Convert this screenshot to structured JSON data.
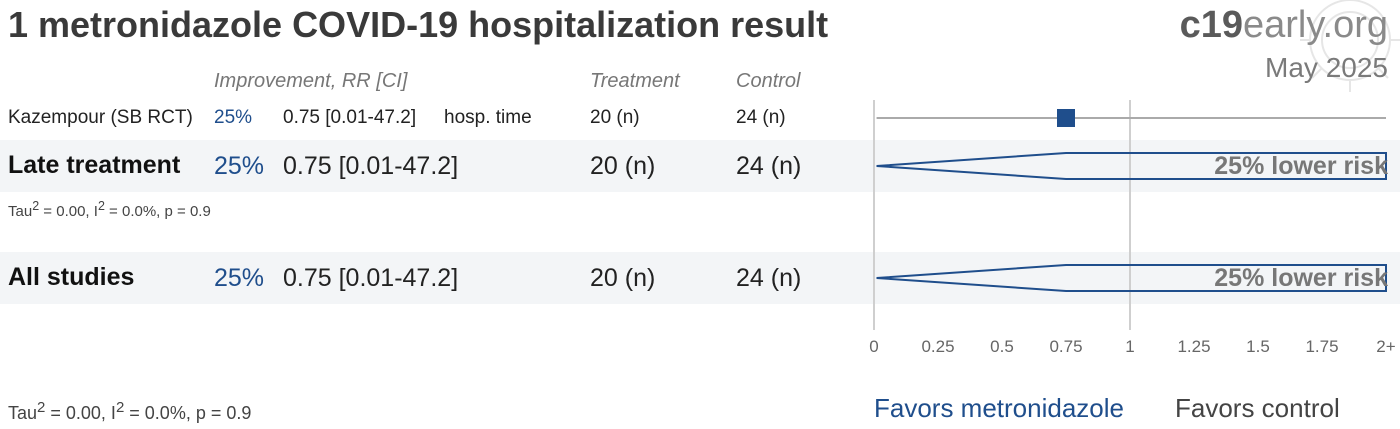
{
  "header": {
    "title": "1 metronidazole COVID-19 hospitalization result",
    "brand_bold": "c19",
    "brand_rest": "early.org",
    "date": "May 2025"
  },
  "columns": {
    "improvement": "Improvement, RR [CI]",
    "treatment": "Treatment",
    "control": "Control"
  },
  "study": {
    "name": "Kazempour (SB RCT)",
    "improvement": "25%",
    "rr_ci": "0.75 [0.01-47.2]",
    "outcome": "hosp. time",
    "treatment": "20 (n)",
    "control": "24 (n)"
  },
  "late": {
    "label": "Late treatment",
    "improvement": "25%",
    "rr_ci": "0.75 [0.01-47.2]",
    "treatment": "20 (n)",
    "control": "24 (n)",
    "risk_text": "25% lower risk",
    "tau_sym": "Tau",
    "sq": "2",
    "tau_val": " = 0.00, I",
    "i_val": " = 0.0%, p = 0.9"
  },
  "all": {
    "label": "All studies",
    "improvement": "25%",
    "rr_ci": "0.75 [0.01-47.2]",
    "treatment": "20 (n)",
    "control": "24 (n)",
    "risk_text": "25% lower risk",
    "tau_sym": "Tau",
    "sq": "2",
    "tau_val": " = 0.00, I",
    "i_val": " = 0.0%, p = 0.9"
  },
  "footer": {
    "favors_treatment": "Favors metronidazole",
    "favors_control": "Favors control"
  },
  "chart_data": {
    "type": "forest",
    "x_ticks": [
      "0",
      "0.25",
      "0.5",
      "0.75",
      "1",
      "1.25",
      "1.5",
      "1.75",
      "2+"
    ],
    "xlim": [
      0,
      2
    ],
    "reference_line": 1,
    "study": {
      "name": "Kazempour (SB RCT)",
      "rr": 0.75,
      "ci_low": 0.01,
      "ci_high": 47.2
    },
    "pooled": [
      {
        "name": "Late treatment",
        "rr": 0.75,
        "ci_low": 0.01,
        "ci_high": 47.2
      },
      {
        "name": "All studies",
        "rr": 0.75,
        "ci_low": 0.01,
        "ci_high": 47.2
      }
    ],
    "colors": {
      "accent": "#1f4e8c",
      "line": "#aaaaaa"
    }
  }
}
